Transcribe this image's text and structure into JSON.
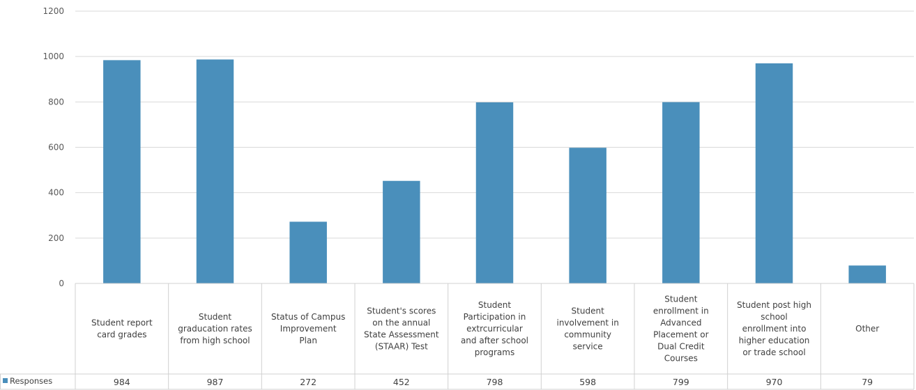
{
  "chart_data": {
    "type": "bar",
    "title": "",
    "xlabel": "",
    "ylabel": "",
    "ylim": [
      0,
      1200
    ],
    "yticks": [
      0,
      200,
      400,
      600,
      800,
      1000,
      1200
    ],
    "grid": true,
    "legend": "data-table-left",
    "bar_color": "#4a8fbb",
    "categories": [
      "Student report card grades",
      "Student graducation rates from high school",
      "Status of Campus Improvement Plan",
      "Student's scores on the annual State Assessment (STAAR) Test",
      "Student Participation in extrcurricular and after school programs",
      "Student involvement in community service",
      "Student enrollment in Advanced Placement or Dual Credit Courses",
      "Student post high school enrollment into higher education or trade school",
      "Other"
    ],
    "category_lines": [
      [
        "Student report",
        "card grades"
      ],
      [
        "Student",
        "graducation rates",
        "from high school"
      ],
      [
        "Status of Campus",
        "Improvement",
        "Plan"
      ],
      [
        "Student's scores",
        "on the annual",
        "State Assessment",
        "(STAAR) Test"
      ],
      [
        "Student",
        "Participation in",
        "extrcurricular",
        "and after school",
        "programs"
      ],
      [
        "Student",
        "involvement in",
        "community",
        "service"
      ],
      [
        "Student",
        "enrollment in",
        "Advanced",
        "Placement or",
        "Dual Credit",
        "Courses"
      ],
      [
        "Student post high",
        "school",
        "enrollment into",
        "higher education",
        "or trade school"
      ],
      [
        "Other"
      ]
    ],
    "series": [
      {
        "name": "Responses",
        "values": [
          984,
          987,
          272,
          452,
          798,
          598,
          799,
          970,
          79
        ]
      }
    ]
  }
}
